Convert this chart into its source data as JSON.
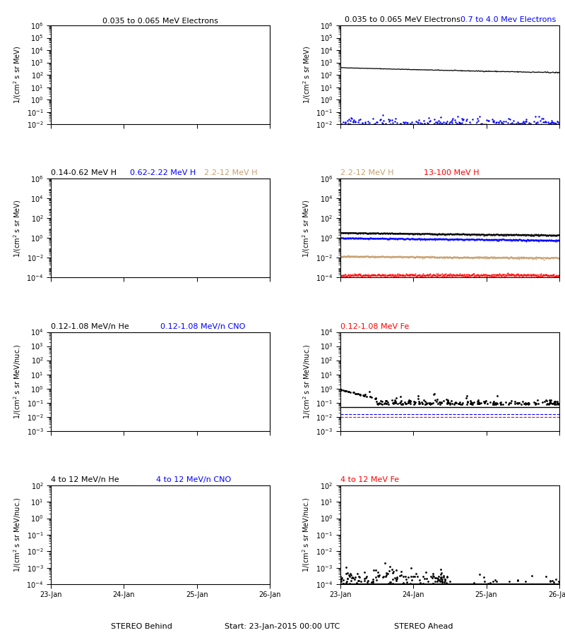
{
  "bg_color": "#ffffff",
  "plot_bg": "#ffffff",
  "seed": 42,
  "n_points": 400,
  "black_color": "#000000",
  "blue_color": "#0000ff",
  "red_color": "#cc0000",
  "brown_color": "#b08060",
  "tan_color": "#c8a070",
  "bottom_labels": [
    "STEREO Behind",
    "Start: 23-Jan-2015 00:00 UTC",
    "STEREO Ahead"
  ],
  "xtick_labels": [
    "23-Jan",
    "24-Jan",
    "25-Jan",
    "26-Jan"
  ],
  "row0_left_title": "0.035 to 0.065 MeV Electrons",
  "row0_right_title": "0.7 to 4.0 Mev Electrons",
  "row1_left_t1": "0.14-0.62 MeV H",
  "row1_left_t2": "0.62-2.22 MeV H",
  "row1_left_t3": "2.2-12 MeV H",
  "row1_left_t4": "13-100 MeV H",
  "row2_left_t1": "0.12-1.08 MeV/n He",
  "row2_left_t2": "0.12-1.08 MeV/n CNO",
  "row2_right_t1": "0.12-1.08 MeV Fe",
  "row3_left_t1": "4 to 12 MeV/n He",
  "row3_left_t2": "4 to 12 MeV/n CNO",
  "row3_right_t1": "4 to 12 MeV Fe"
}
